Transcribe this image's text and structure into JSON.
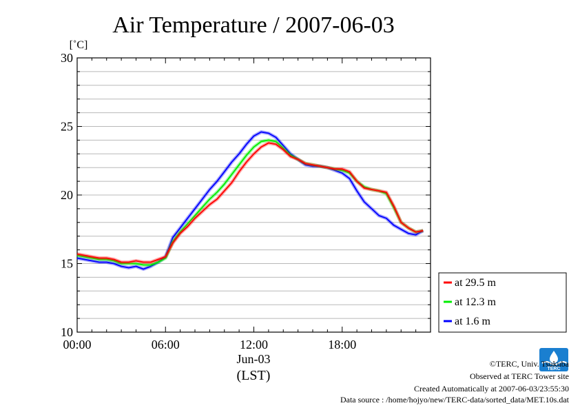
{
  "chart_data": {
    "type": "line",
    "title": "Air Temperature / 2007-06-03",
    "ylabel": "[˚C]",
    "xlabel": "(LST)",
    "date_label": "Jun-03",
    "ylim": [
      10,
      30
    ],
    "yticks": [
      10,
      15,
      20,
      25,
      30
    ],
    "xlim": [
      0,
      24
    ],
    "xticks": [
      {
        "hour": 0,
        "label": "00:00"
      },
      {
        "hour": 6,
        "label": "06:00"
      },
      {
        "hour": 12,
        "label": "12:00"
      },
      {
        "hour": 18,
        "label": "18:00"
      }
    ],
    "grid": true,
    "legend_position": "right",
    "x": [
      0,
      0.5,
      1,
      1.5,
      2,
      2.5,
      3,
      3.5,
      4,
      4.5,
      5,
      5.5,
      6,
      6.5,
      7,
      7.5,
      8,
      8.5,
      9,
      9.5,
      10,
      10.5,
      11,
      11.5,
      12,
      12.5,
      13,
      13.5,
      14,
      14.5,
      15,
      15.5,
      16,
      16.5,
      17,
      17.5,
      18,
      18.5,
      19,
      19.5,
      20,
      20.5,
      21,
      21.5,
      22,
      22.5,
      23,
      23.5
    ],
    "series": [
      {
        "name": "at 29.5 m",
        "color": "#ff0000",
        "values": [
          15.7,
          15.6,
          15.5,
          15.4,
          15.4,
          15.3,
          15.1,
          15.1,
          15.2,
          15.1,
          15.1,
          15.3,
          15.5,
          16.5,
          17.2,
          17.7,
          18.3,
          18.8,
          19.3,
          19.7,
          20.3,
          20.9,
          21.7,
          22.4,
          23.0,
          23.5,
          23.8,
          23.7,
          23.3,
          22.8,
          22.6,
          22.3,
          22.2,
          22.1,
          22.0,
          21.9,
          21.9,
          21.7,
          21.0,
          20.5,
          20.4,
          20.3,
          20.2,
          19.2,
          18.0,
          17.6,
          17.3,
          17.4
        ]
      },
      {
        "name": "at 12.3 m",
        "color": "#00ee00",
        "values": [
          15.6,
          15.5,
          15.4,
          15.3,
          15.3,
          15.2,
          15.0,
          15.0,
          15.0,
          14.9,
          14.9,
          15.1,
          15.4,
          16.6,
          17.3,
          17.9,
          18.5,
          19.1,
          19.7,
          20.2,
          20.8,
          21.5,
          22.2,
          22.9,
          23.5,
          23.9,
          24.0,
          23.9,
          23.4,
          22.9,
          22.6,
          22.3,
          22.2,
          22.1,
          22.0,
          21.9,
          21.8,
          21.6,
          21.0,
          20.6,
          20.4,
          20.3,
          20.1,
          19.1,
          18.0,
          17.6,
          17.3,
          17.4
        ]
      },
      {
        "name": "at 1.6 m",
        "color": "#0000ff",
        "values": [
          15.4,
          15.3,
          15.2,
          15.1,
          15.1,
          15.0,
          14.8,
          14.7,
          14.8,
          14.6,
          14.8,
          15.1,
          15.5,
          16.9,
          17.6,
          18.3,
          19.0,
          19.7,
          20.4,
          21.0,
          21.7,
          22.4,
          23.0,
          23.7,
          24.3,
          24.6,
          24.5,
          24.2,
          23.6,
          23.0,
          22.6,
          22.2,
          22.1,
          22.1,
          22.0,
          21.8,
          21.6,
          21.2,
          20.3,
          19.5,
          19.0,
          18.5,
          18.3,
          17.8,
          17.5,
          17.2,
          17.1,
          17.4
        ]
      }
    ]
  },
  "footer": {
    "copyright": "©TERC, Univ. Tsukuba",
    "observed": "Observed at TERC Tower site",
    "created": "Created Automatically at 2007-06-03/23:55:30",
    "source": "Data source : /home/hojyo/new/TERC-data/sorted_data/MET.10s.dat"
  },
  "logo": {
    "text": "TERC",
    "color": "#1a7fd0"
  }
}
